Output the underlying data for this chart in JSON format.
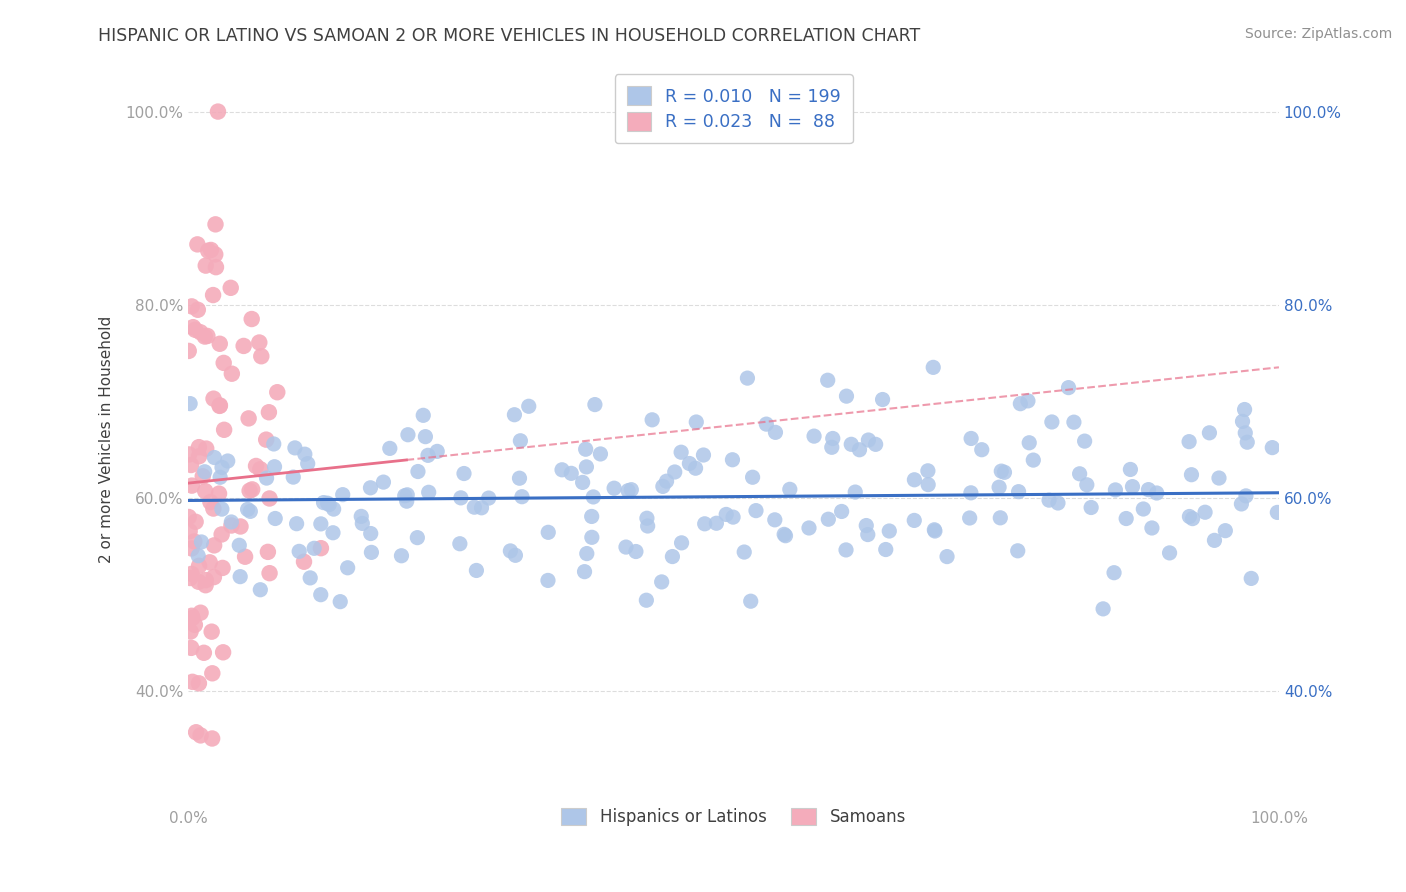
{
  "title": "HISPANIC OR LATINO VS SAMOAN 2 OR MORE VEHICLES IN HOUSEHOLD CORRELATION CHART",
  "source": "Source: ZipAtlas.com",
  "ylabel": "2 or more Vehicles in Household",
  "xlim": [
    0.0,
    1.0
  ],
  "ylim": [
    0.28,
    1.04
  ],
  "yticks": [
    0.4,
    0.6,
    0.8,
    1.0
  ],
  "ytick_labels": [
    "40.0%",
    "60.0%",
    "80.0%",
    "100.0%"
  ],
  "blue_R": 0.01,
  "blue_N": 199,
  "pink_R": 0.023,
  "pink_N": 88,
  "blue_color": "#AEC6E8",
  "pink_color": "#F4ACBB",
  "blue_line_color": "#3A6FC4",
  "pink_line_color": "#E8708A",
  "legend_blue_label": "Hispanics or Latinos",
  "legend_pink_label": "Samoans",
  "title_color": "#404040",
  "source_color": "#909090",
  "axis_label_color": "#404040",
  "tick_label_color": "#A0A0A0",
  "right_ytick_color": "#3A6FC4",
  "grid_color": "#DDDDDD"
}
